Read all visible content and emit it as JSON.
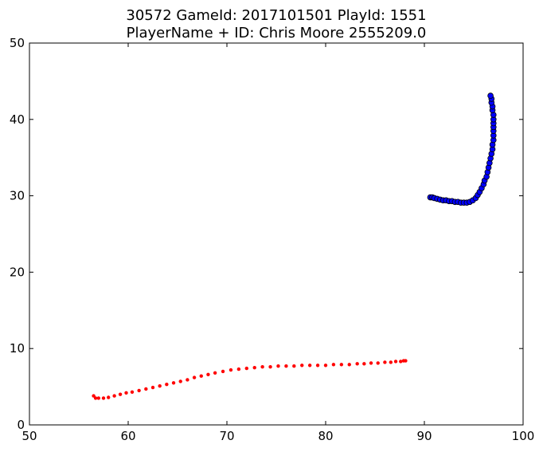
{
  "chart_data": {
    "type": "scatter",
    "title": "30572 GameId: 2017101501 PlayId: 1551",
    "subtitle": "PlayerName + ID: Chris Moore 2555209.0",
    "xlabel": "",
    "ylabel": "",
    "xlim": [
      50,
      100
    ],
    "ylim": [
      0,
      50
    ],
    "xticks": [
      50,
      60,
      70,
      80,
      90,
      100
    ],
    "yticks": [
      0,
      10,
      20,
      30,
      40,
      50
    ],
    "grid": false,
    "legend": "none",
    "series": [
      {
        "color": "#ff0000",
        "marker": "small-dot",
        "x": [
          56.5,
          56.7,
          57.0,
          57.5,
          58.0,
          58.6,
          59.2,
          59.8,
          60.4,
          61.1,
          61.8,
          62.5,
          63.2,
          63.9,
          64.6,
          65.3,
          66.0,
          66.7,
          67.4,
          68.1,
          68.8,
          69.6,
          70.4,
          71.2,
          72.0,
          72.8,
          73.6,
          74.4,
          75.2,
          76.0,
          76.8,
          77.6,
          78.4,
          79.2,
          80.0,
          80.8,
          81.6,
          82.4,
          83.2,
          83.9,
          84.6,
          85.3,
          86.0,
          86.6,
          87.1,
          87.6,
          87.9,
          88.1
        ],
        "y": [
          3.8,
          3.5,
          3.5,
          3.5,
          3.6,
          3.8,
          4.0,
          4.2,
          4.3,
          4.5,
          4.7,
          4.9,
          5.1,
          5.3,
          5.5,
          5.7,
          5.9,
          6.2,
          6.4,
          6.6,
          6.8,
          7.0,
          7.2,
          7.3,
          7.4,
          7.5,
          7.6,
          7.6,
          7.7,
          7.7,
          7.7,
          7.8,
          7.8,
          7.8,
          7.8,
          7.9,
          7.9,
          7.9,
          8.0,
          8.0,
          8.1,
          8.1,
          8.2,
          8.2,
          8.3,
          8.3,
          8.4,
          8.4
        ]
      },
      {
        "color": "#0000ff",
        "marker": "circle",
        "x": [
          90.6,
          90.8,
          91.0,
          91.3,
          91.6,
          91.9,
          92.2,
          92.5,
          92.8,
          93.1,
          93.4,
          93.7,
          94.0,
          94.3,
          94.6,
          94.9,
          95.2,
          95.4,
          95.6,
          95.8,
          96.0,
          96.1,
          96.3,
          96.4,
          96.5,
          96.6,
          96.7,
          96.8,
          96.9,
          96.9,
          97.0,
          97.0,
          97.0,
          97.0,
          97.0,
          97.0,
          97.0,
          96.9,
          96.9,
          96.8,
          96.8,
          96.7
        ],
        "y": [
          29.8,
          29.8,
          29.7,
          29.6,
          29.5,
          29.4,
          29.4,
          29.3,
          29.3,
          29.2,
          29.2,
          29.1,
          29.1,
          29.1,
          29.2,
          29.4,
          29.7,
          30.1,
          30.5,
          31.0,
          31.5,
          32.0,
          32.5,
          33.1,
          33.7,
          34.3,
          34.9,
          35.5,
          36.1,
          36.7,
          37.3,
          37.9,
          38.5,
          39.0,
          39.5,
          40.0,
          40.6,
          41.2,
          41.7,
          42.2,
          42.7,
          43.1
        ]
      }
    ]
  }
}
